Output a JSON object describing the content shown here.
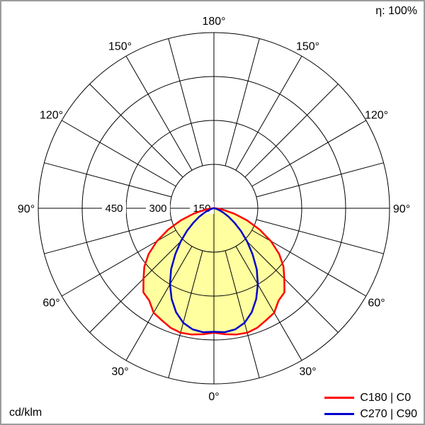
{
  "chart_data": {
    "type": "polar",
    "kind": "luminous-intensity-distribution",
    "unit": "cd/klm",
    "efficiency": "η: 100%",
    "radial_ticks": [
      450,
      300,
      150
    ],
    "radial_axis_max": 600,
    "radial_ring_values": [
      150,
      300,
      450,
      600
    ],
    "angle_step_deg": 30,
    "angle_labels": [
      "180°",
      "150°",
      "120°",
      "90°",
      "60°",
      "30°",
      "0°"
    ],
    "spoke_step_deg": 15,
    "gamma_deg": [
      0,
      5,
      10,
      15,
      20,
      25,
      30,
      35,
      40,
      45,
      50,
      55,
      60,
      65,
      70,
      75,
      80,
      85,
      90
    ],
    "series": [
      {
        "name": "C180 | C0",
        "color": "#ff0000",
        "fill_color": "#ffffa0",
        "values": [
          425,
          432,
          438,
          440,
          434,
          422,
          412,
          385,
          375,
          340,
          310,
          272,
          225,
          172,
          120,
          72,
          34,
          12,
          3
        ]
      },
      {
        "name": "C270 | C90",
        "color": "#0000cc",
        "fill_color": null,
        "values": [
          422,
          425,
          420,
          405,
          378,
          342,
          300,
          255,
          205,
          160,
          120,
          85,
          58,
          36,
          20,
          10,
          4,
          1,
          0
        ]
      }
    ],
    "colors": {
      "grid": "#000000",
      "tick_label_background": "#ffffff",
      "border": "#9c9c9c"
    }
  }
}
